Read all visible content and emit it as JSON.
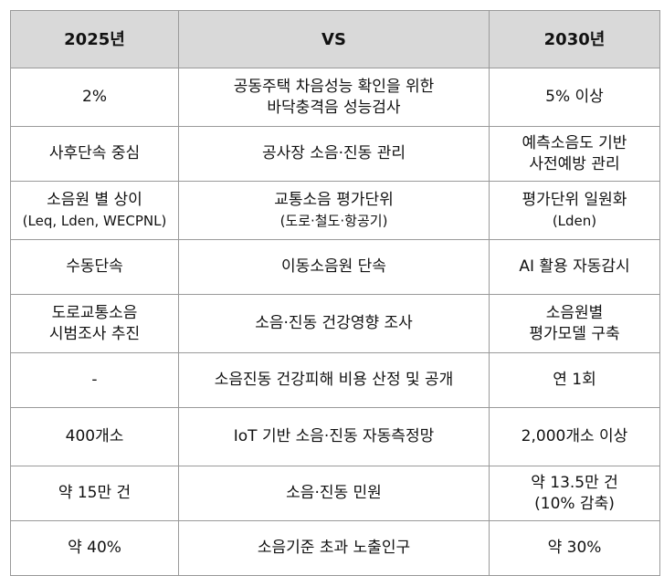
{
  "table": {
    "headers": [
      "2025년",
      "VS",
      "2030년"
    ],
    "rows": [
      {
        "c2025": [
          "2%"
        ],
        "topic": [
          "공동주택 차음성능 확인을 위한",
          "바닥충격음 성능검사"
        ],
        "c2030": [
          "5% 이상"
        ]
      },
      {
        "c2025": [
          "사후단속 중심"
        ],
        "topic": [
          "공사장 소음·진동 관리"
        ],
        "c2030": [
          "예측소음도 기반",
          "사전예방 관리"
        ]
      },
      {
        "c2025": [
          "소음원 별 상이",
          "(Leq, Lden, WECPNL)"
        ],
        "topic": [
          "교통소음 평가단위",
          "(도로·철도·항공기)"
        ],
        "c2030": [
          "평가단위 일원화",
          "(Lden)"
        ]
      },
      {
        "c2025": [
          "수동단속"
        ],
        "topic": [
          "이동소음원 단속"
        ],
        "c2030": [
          "AI 활용 자동감시"
        ]
      },
      {
        "c2025": [
          "도로교통소음",
          "시범조사 추진"
        ],
        "topic": [
          "소음·진동 건강영향 조사"
        ],
        "c2030": [
          "소음원별",
          "평가모델 구축"
        ]
      },
      {
        "c2025": [
          "-"
        ],
        "topic": [
          "소음진동 건강피해 비용 산정 및 공개"
        ],
        "c2030": [
          "연 1회"
        ]
      },
      {
        "c2025": [
          "400개소"
        ],
        "topic": [
          "IoT 기반 소음·진동 자동측정망"
        ],
        "c2030": [
          "2,000개소 이상"
        ]
      },
      {
        "c2025": [
          "약 15만 건"
        ],
        "topic": [
          "소음·진동 민원"
        ],
        "c2030": [
          "약 13.5만 건",
          "(10% 감축)"
        ]
      },
      {
        "c2025": [
          "약 40%"
        ],
        "topic": [
          "소음기준 초과 노출인구"
        ],
        "c2030": [
          "약 30%"
        ]
      }
    ]
  }
}
